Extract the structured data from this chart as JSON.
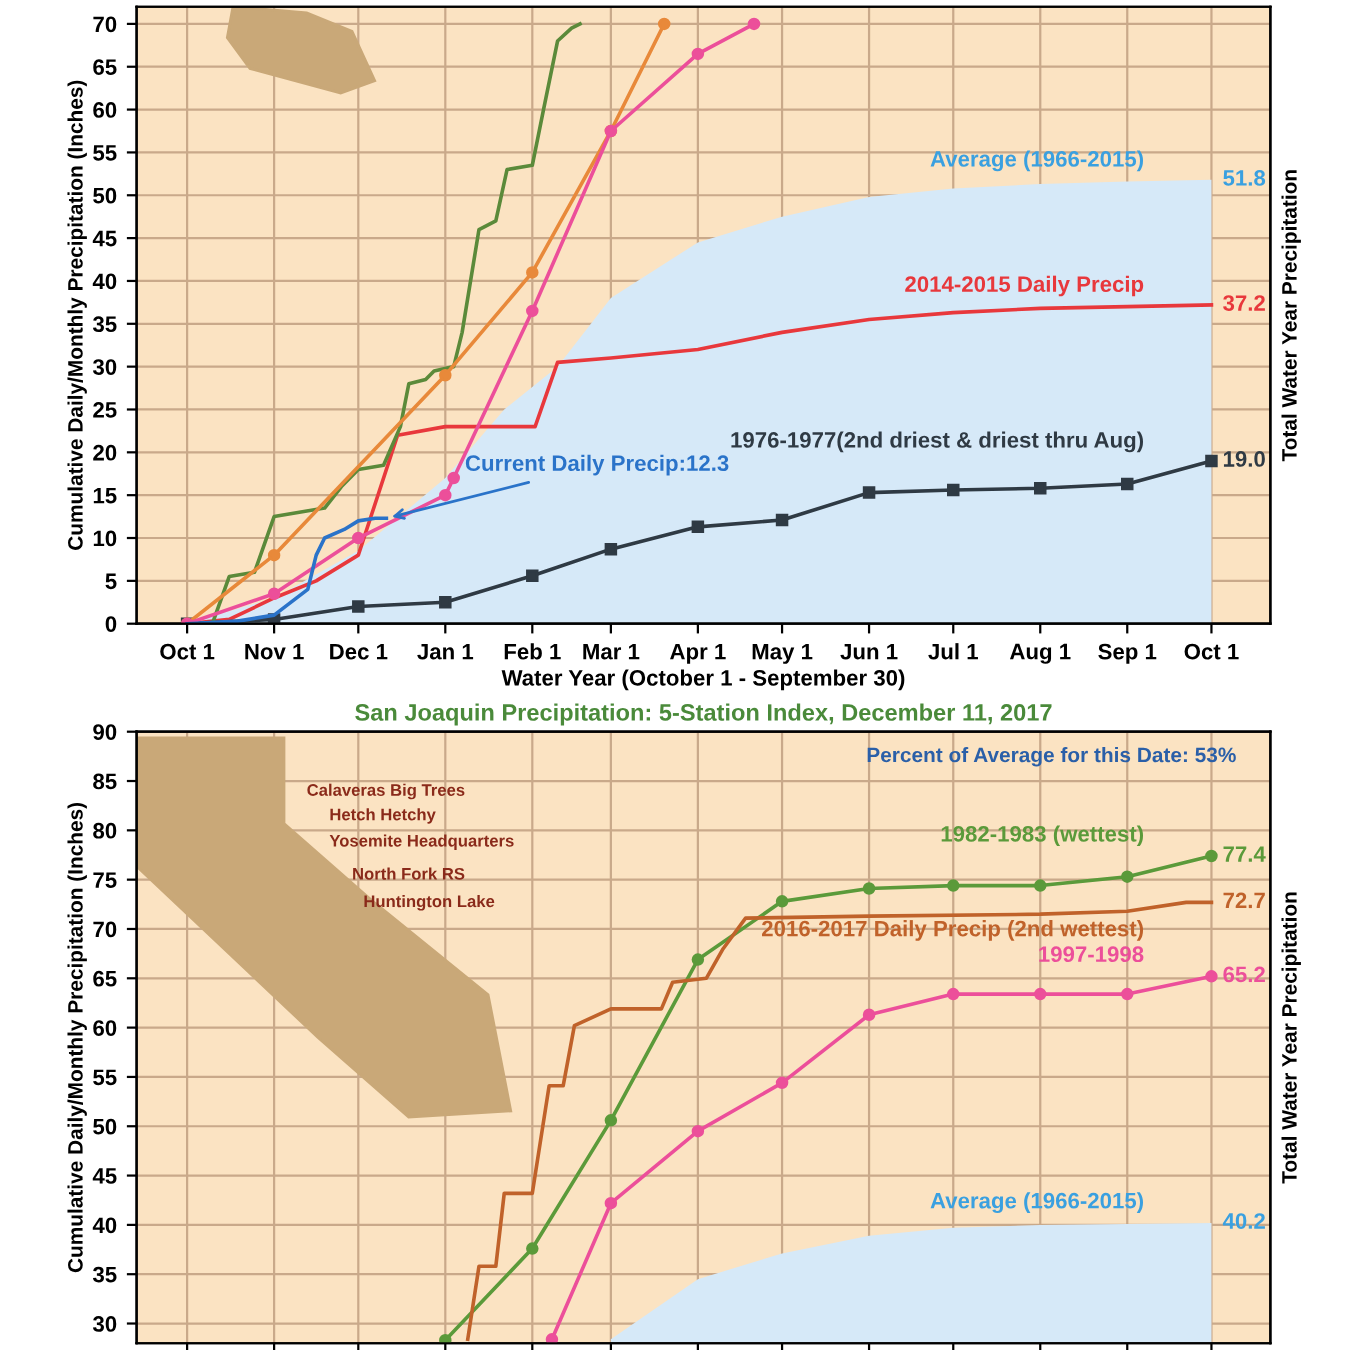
{
  "chart_data": [
    {
      "type": "line",
      "xlabel": "Water Year (October 1 - September 30)",
      "ylabel": "Cumulative Daily/Monthly Precipitation (Inches)",
      "y2label": "Total Water Year Precipitation",
      "xlim": [
        "2017-09-13",
        "2018-10-22"
      ],
      "ylim": [
        0,
        72
      ],
      "xticks": [
        {
          "value": "2017-10-01",
          "label": "Oct 1"
        },
        {
          "value": "2017-11-01",
          "label": "Nov 1"
        },
        {
          "value": "2017-12-01",
          "label": "Dec 1"
        },
        {
          "value": "2018-01-01",
          "label": "Jan 1"
        },
        {
          "value": "2018-02-01",
          "label": "Feb 1"
        },
        {
          "value": "2018-03-01",
          "label": "Mar 1"
        },
        {
          "value": "2018-04-01",
          "label": "Apr 1"
        },
        {
          "value": "2018-05-01",
          "label": "May 1"
        },
        {
          "value": "2018-06-01",
          "label": "Jun 1"
        },
        {
          "value": "2018-07-01",
          "label": "Jul 1"
        },
        {
          "value": "2018-08-01",
          "label": "Aug 1"
        },
        {
          "value": "2018-09-01",
          "label": "Sep 1"
        },
        {
          "value": "2018-10-01",
          "label": "Oct 1"
        }
      ],
      "yticks": [
        0,
        5,
        10,
        15,
        20,
        25,
        30,
        35,
        40,
        45,
        50,
        55,
        60,
        65,
        70
      ],
      "grid": true,
      "series": [
        {
          "name": "Average (1966-2015)",
          "type": "area",
          "color": "#d6e9f8",
          "x": [
            "2017-10-01",
            "2017-11-01",
            "2017-12-01",
            "2018-01-01",
            "2018-01-22",
            "2018-02-10",
            "2018-03-01",
            "2018-04-01",
            "2018-05-01",
            "2018-06-01",
            "2018-07-01",
            "2018-08-01",
            "2018-09-01",
            "2018-10-01"
          ],
          "values": [
            0,
            3,
            8.5,
            17,
            25,
            30,
            38,
            44.5,
            47.5,
            49.8,
            50.8,
            51.3,
            51.6,
            51.8
          ]
        },
        {
          "name": "2014-2015 Daily Precip",
          "color": "#e8383c",
          "marker": "none",
          "x": [
            "2017-10-01",
            "2017-10-16",
            "2017-11-01",
            "2017-11-16",
            "2017-12-01",
            "2017-12-06",
            "2017-12-15",
            "2018-01-01",
            "2018-02-02",
            "2018-02-10",
            "2018-03-01",
            "2018-04-01",
            "2018-05-01",
            "2018-06-01",
            "2018-07-01",
            "2018-08-01",
            "2018-09-01",
            "2018-10-01"
          ],
          "values": [
            0,
            0.5,
            3,
            5,
            8,
            13,
            22,
            23,
            23,
            30.5,
            31,
            32,
            34,
            35.5,
            36.3,
            36.8,
            37,
            37.2
          ]
        },
        {
          "name": "1976-1977(2nd driest & driest thru Aug)",
          "color": "#2f3a44",
          "marker": "square",
          "x": [
            "2017-10-01",
            "2017-11-01",
            "2017-12-01",
            "2018-01-01",
            "2018-02-01",
            "2018-03-01",
            "2018-04-01",
            "2018-05-01",
            "2018-06-01",
            "2018-07-01",
            "2018-08-01",
            "2018-09-01",
            "2018-10-01"
          ],
          "values": [
            0,
            0.5,
            2,
            2.5,
            5.6,
            8.7,
            11.3,
            12.1,
            15.3,
            15.6,
            15.8,
            16.3,
            19.0
          ]
        },
        {
          "color": "#5b8a3a",
          "marker": "none",
          "x": [
            "2017-10-01",
            "2017-10-10",
            "2017-10-16",
            "2017-10-25",
            "2017-11-01",
            "2017-11-19",
            "2017-11-25",
            "2017-12-01",
            "2017-12-10",
            "2017-12-16",
            "2017-12-19",
            "2017-12-25",
            "2017-12-28",
            "2018-01-04",
            "2018-01-07",
            "2018-01-13",
            "2018-01-19",
            "2018-01-23",
            "2018-02-01",
            "2018-02-05",
            "2018-02-10",
            "2018-02-15",
            "2018-02-18"
          ],
          "values": [
            0,
            0,
            5.5,
            6,
            12.5,
            13.5,
            16,
            18,
            18.5,
            23,
            28,
            28.5,
            29.5,
            30,
            34,
            46,
            47,
            53,
            53.5,
            60,
            68,
            69.5,
            70
          ]
        },
        {
          "color": "#e8893a",
          "marker": "circle",
          "x": [
            "2017-10-01",
            "2017-11-01",
            "2018-01-01",
            "2018-02-01",
            "2018-03-01",
            "2018-03-20"
          ],
          "values": [
            0,
            8,
            29,
            41,
            57.5,
            70
          ]
        },
        {
          "color": "#ec4f9a",
          "marker": "circle",
          "x": [
            "2017-10-01",
            "2017-11-01",
            "2017-12-01",
            "2018-01-01",
            "2018-01-04",
            "2018-02-01",
            "2018-03-01",
            "2018-04-01",
            "2018-04-21"
          ],
          "values": [
            0,
            3.5,
            10,
            15,
            17,
            36.5,
            57.5,
            66.5,
            70
          ]
        },
        {
          "name": "Current Daily Precip:12.3",
          "color": "#2a73c9",
          "marker": "none",
          "x": [
            "2017-10-01",
            "2017-10-19",
            "2017-11-01",
            "2017-11-13",
            "2017-11-16",
            "2017-11-19",
            "2017-11-26",
            "2017-12-01",
            "2017-12-07",
            "2017-12-11"
          ],
          "values": [
            0,
            0.3,
            1,
            4,
            8,
            10,
            11,
            12,
            12.3,
            12.3
          ]
        }
      ],
      "annotations": [
        {
          "text": "51.8",
          "x": "2018-10-01",
          "y": 51.8
        },
        {
          "text": "37.2",
          "x": "2018-10-01",
          "y": 37.2
        },
        {
          "text": "19.0",
          "x": "2018-10-01",
          "y": 19.0
        }
      ]
    },
    {
      "type": "line",
      "title": "San Joaquin Precipitation: 5-Station Index, December 11, 2017",
      "ylabel": "Cumulative Daily/Monthly Precipitation (Inches)",
      "y2label": "Total Water Year Precipitation",
      "xlim": [
        "2017-09-13",
        "2018-10-22"
      ],
      "ylim": [
        28,
        90
      ],
      "tick_labels": "y",
      "xticks": [
        {
          "value": "2017-10-01",
          "label": null
        },
        {
          "value": "2017-11-01",
          "label": null
        },
        {
          "value": "2017-12-01",
          "label": null
        },
        {
          "value": "2018-01-01",
          "label": null
        },
        {
          "value": "2018-02-01",
          "label": null
        },
        {
          "value": "2018-03-01",
          "label": null
        },
        {
          "value": "2018-04-01",
          "label": null
        },
        {
          "value": "2018-05-01",
          "label": null
        },
        {
          "value": "2018-06-01",
          "label": null
        },
        {
          "value": "2018-07-01",
          "label": null
        },
        {
          "value": "2018-08-01",
          "label": null
        },
        {
          "value": "2018-09-01",
          "label": null
        },
        {
          "value": "2018-10-01",
          "label": null
        }
      ],
      "yticks": [
        30,
        35,
        40,
        45,
        50,
        55,
        60,
        65,
        70,
        75,
        80,
        85,
        90
      ],
      "grid": true,
      "series": [
        {
          "name": "Average (1966-2015)",
          "type": "area",
          "color": "#d6e9f8",
          "x": [
            "2018-03-01",
            "2018-04-01",
            "2018-05-01",
            "2018-06-01",
            "2018-07-01",
            "2018-08-01",
            "2018-09-01",
            "2018-10-01"
          ],
          "values": [
            28.4,
            34.5,
            37.1,
            38.9,
            39.7,
            40,
            40.1,
            40.2
          ]
        },
        {
          "name": "1982-1983 (wettest)",
          "color": "#5b9a3a",
          "marker": "circle",
          "x": [
            "2018-01-01",
            "2018-02-01",
            "2018-03-01",
            "2018-04-01",
            "2018-05-01",
            "2018-06-01",
            "2018-07-01",
            "2018-08-01",
            "2018-09-01",
            "2018-10-01"
          ],
          "values": [
            28.3,
            37.6,
            50.6,
            66.9,
            72.8,
            74.1,
            74.4,
            74.4,
            75.3,
            77.4
          ]
        },
        {
          "name": "2016-2017 Daily Precip (2nd wettest)",
          "color": "#c0622a",
          "marker": "none",
          "x": [
            "2018-01-09",
            "2018-01-13",
            "2018-01-19",
            "2018-01-22",
            "2018-02-01",
            "2018-02-07",
            "2018-02-12",
            "2018-02-16",
            "2018-03-01",
            "2018-03-19",
            "2018-03-23",
            "2018-04-04",
            "2018-04-10",
            "2018-04-18",
            "2018-06-01",
            "2018-08-01",
            "2018-09-01",
            "2018-09-22",
            "2018-10-01"
          ],
          "values": [
            28.4,
            35.8,
            35.8,
            43.2,
            43.2,
            54.1,
            54.1,
            60.2,
            61.9,
            61.9,
            64.6,
            65,
            68,
            71.1,
            71.3,
            71.5,
            71.8,
            72.7,
            72.7
          ]
        },
        {
          "name": "1997-1998",
          "color": "#ec4f9a",
          "marker": "circle",
          "x": [
            "2018-02-08",
            "2018-03-01",
            "2018-04-01",
            "2018-05-01",
            "2018-06-01",
            "2018-07-01",
            "2018-08-01",
            "2018-09-01",
            "2018-10-01"
          ],
          "values": [
            28.4,
            42.2,
            49.5,
            54.4,
            61.3,
            63.4,
            63.4,
            63.4,
            65.2
          ]
        }
      ],
      "annotations": [
        "Percent of Average for this Date: 53%",
        "Calaveras Big Trees",
        "Hetch Hetchy",
        "Yosemite Headquarters",
        "North Fork RS",
        "Huntington Lake",
        {
          "text": "77.4",
          "x": "2018-10-01",
          "y": 77.4
        },
        {
          "text": "72.7",
          "x": "2018-10-01",
          "y": 72.7
        },
        {
          "text": "65.2",
          "x": "2018-10-01",
          "y": 65.2
        },
        {
          "text": "40.2",
          "x": "2018-10-01",
          "y": 40.2
        }
      ]
    }
  ]
}
